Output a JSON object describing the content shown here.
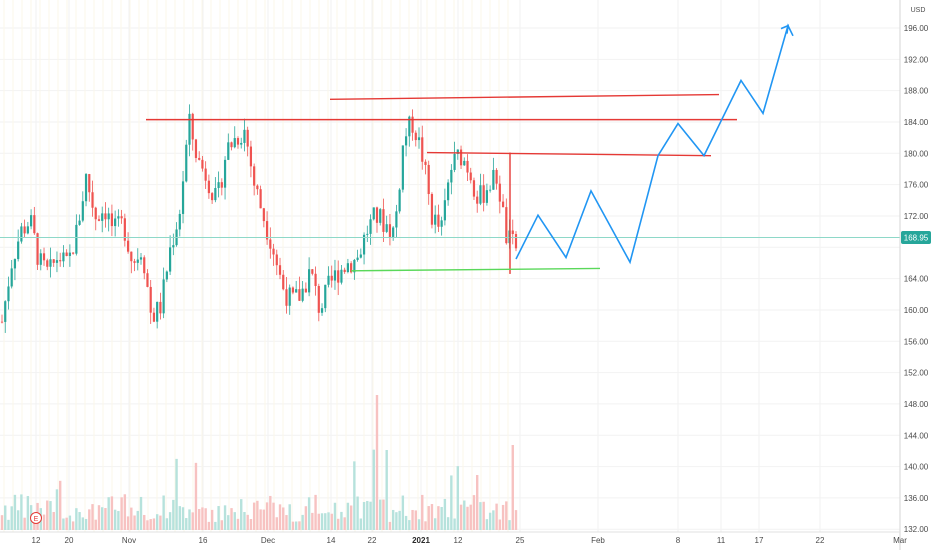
{
  "chart_data": {
    "type": "candlestick",
    "currency": "USD",
    "current_price": "168.95",
    "ylim": [
      130,
      198
    ],
    "y_ticks": [
      "196.00",
      "192.00",
      "188.00",
      "184.00",
      "180.00",
      "176.00",
      "172.00",
      "168.00",
      "164.00",
      "160.00",
      "156.00",
      "152.00",
      "148.00",
      "144.00",
      "140.00",
      "136.00",
      "132.00"
    ],
    "x_ticks": [
      {
        "label": "12",
        "bold": false
      },
      {
        "label": "20",
        "bold": false
      },
      {
        "label": "Nov",
        "bold": false
      },
      {
        "label": "16",
        "bold": false
      },
      {
        "label": "Dec",
        "bold": false
      },
      {
        "label": "14",
        "bold": false
      },
      {
        "label": "22",
        "bold": false
      },
      {
        "label": "2021",
        "bold": true
      },
      {
        "label": "12",
        "bold": false
      },
      {
        "label": "25",
        "bold": false
      },
      {
        "label": "Feb",
        "bold": false
      },
      {
        "label": "8",
        "bold": false
      },
      {
        "label": "11",
        "bold": false
      },
      {
        "label": "17",
        "bold": false
      },
      {
        "label": "22",
        "bold": false
      },
      {
        "label": "Mar",
        "bold": false
      }
    ],
    "earnings_marker": "E",
    "resistance_lines": [
      {
        "from_y": 184.3,
        "to_y": 184.3,
        "color": "#e53935"
      },
      {
        "from_y": 186.9,
        "to_y": 187.5,
        "color": "#e53935"
      },
      {
        "from_y": 180.1,
        "to_y": 179.7,
        "color": "#e53935"
      }
    ],
    "support_lines": [
      {
        "from_y": 165.0,
        "to_y": 165.3,
        "color": "#5ad85a"
      }
    ],
    "projection_path": [
      166.5,
      172.1,
      166.7,
      175.2,
      166.1,
      179.7,
      183.8,
      179.7,
      189.3,
      185.1,
      196.3,
      195.0
    ],
    "projection_color": "#2196f3",
    "price_path": [
      158.5,
      166,
      170,
      171.5,
      166,
      164.5,
      167,
      165.5,
      170,
      177,
      172,
      173,
      170,
      171,
      166,
      168,
      159,
      160.5,
      167.8,
      172.5,
      184,
      179,
      177,
      173.5,
      180.5,
      182,
      183,
      176,
      172,
      168,
      163,
      161,
      162,
      165,
      160,
      163,
      165,
      166,
      166.5,
      170,
      172,
      171,
      170,
      182,
      184,
      179.5,
      172,
      170,
      178,
      180,
      178,
      174,
      176,
      177,
      169,
      168
    ]
  }
}
